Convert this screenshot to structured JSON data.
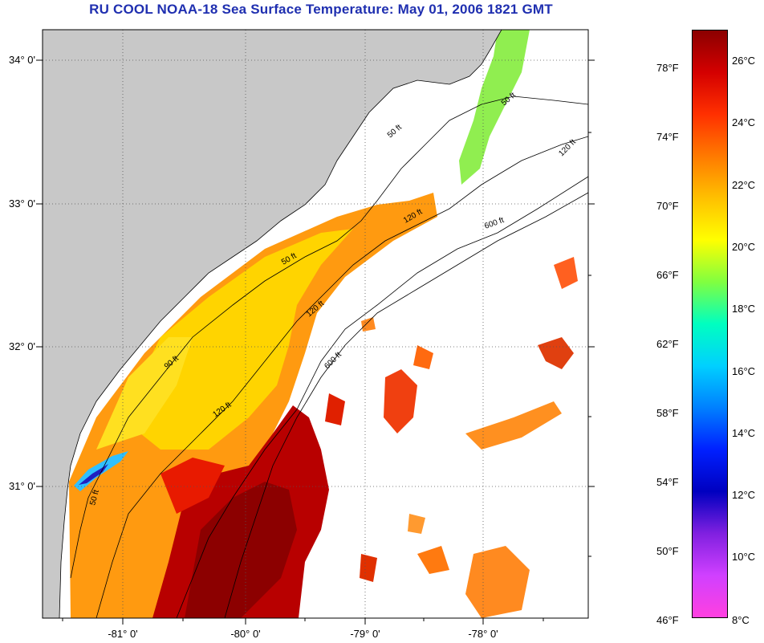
{
  "title": "RU COOL  NOAA-18  Sea Surface Temperature:  May 01, 2006 1821 GMT",
  "map": {
    "latitude_labels": [
      "34° 0'",
      "33° 0'",
      "32° 0'",
      "31° 0'"
    ],
    "longitude_labels": [
      "-81° 0'",
      "-80° 0'",
      "-79° 0'",
      "-78° 0'"
    ],
    "isobath_labels": [
      "50 ft",
      "50 ft",
      "50 ft",
      "90 ft",
      "120 ft",
      "120 ft",
      "120 ft",
      "120 ft",
      "600 ft",
      "600 ft",
      "50 ft"
    ],
    "colors": {
      "land": "#c8c8c8",
      "cloud": "#ffffff",
      "gridline": "#555555"
    }
  },
  "colorbar": {
    "fahrenheit_labels": [
      "78°F",
      "74°F",
      "70°F",
      "66°F",
      "62°F",
      "58°F",
      "54°F",
      "50°F",
      "46°F"
    ],
    "celsius_labels": [
      "26°C",
      "24°C",
      "22°C",
      "20°C",
      "18°C",
      "16°C",
      "14°C",
      "12°C",
      "10°C",
      "8°C"
    ],
    "gradient_stops": [
      "#8b0000",
      "#d40000",
      "#ff3000",
      "#ff7a00",
      "#ffc000",
      "#ffff00",
      "#80ff40",
      "#00ffc0",
      "#00d0ff",
      "#0080ff",
      "#0020ff",
      "#0000c0",
      "#8020e0",
      "#d040ff",
      "#ff40e0"
    ]
  }
}
